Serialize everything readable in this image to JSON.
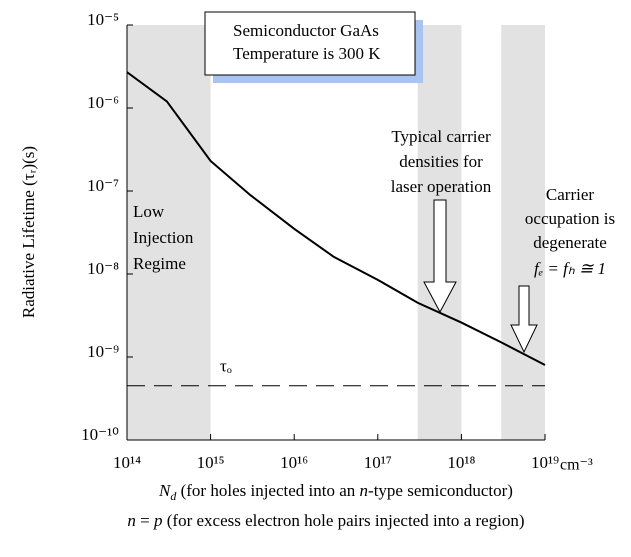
{
  "chart_data": {
    "type": "line",
    "title_lines": [
      "Semiconductor GaAs",
      "Temperature is 300 K"
    ],
    "y_label": "Radiative Lifetime  (τᵣ)(s)",
    "x_label_1": [
      "N",
      "d",
      " (for holes injected into an ",
      "n",
      "-type semiconductor)"
    ],
    "x_label_2": [
      "n",
      " = ",
      "p",
      " (for excess electron hole pairs injected into a region)"
    ],
    "x_unit": "cm⁻³",
    "log_x": true,
    "log_y": true,
    "xlim": [
      100000000000000.0,
      1e+19
    ],
    "ylim": [
      1e-10,
      1e-05
    ],
    "xticks": [
      {
        "value": 100000000000000.0,
        "label": "10¹⁴"
      },
      {
        "value": 1000000000000000.0,
        "label": "10¹⁵"
      },
      {
        "value": 1e+16,
        "label": "10¹⁶"
      },
      {
        "value": 1e+17,
        "label": "10¹⁷"
      },
      {
        "value": 1e+18,
        "label": "10¹⁸"
      },
      {
        "value": 1e+19,
        "label": "10¹⁹"
      }
    ],
    "yticks": [
      {
        "value": 1e-10,
        "label": "10⁻¹⁰"
      },
      {
        "value": 1e-09,
        "label": "10⁻⁹"
      },
      {
        "value": 1e-08,
        "label": "10⁻⁸"
      },
      {
        "value": 1e-07,
        "label": "10⁻⁷"
      },
      {
        "value": 1e-06,
        "label": "10⁻⁶"
      },
      {
        "value": 1e-05,
        "label": "10⁻⁵"
      }
    ],
    "x": [
      100000000000000.0,
      300000000000000.0,
      1000000000000000.0,
      3000000000000000.0,
      1e+16,
      3e+16,
      1e+17,
      3e+17,
      1e+18,
      3e+18,
      1e+19
    ],
    "series": [
      {
        "color": "#000000",
        "values": [
          2.7e-06,
          1.2e-06,
          2.3e-07,
          8.9e-08,
          3.5e-08,
          1.6e-08,
          8.5e-09,
          4.5e-09,
          2.6e-09,
          1.5e-09,
          8e-10
        ]
      }
    ],
    "tau_o": {
      "label": "τₒ",
      "value": 4.5e-10
    },
    "shaded_regions": [
      [
        100000000000000.0,
        1000000000000000.0
      ],
      [
        3e+17,
        1e+18
      ],
      [
        3e+18,
        1e+19
      ]
    ],
    "shade_color": "#e2e2e2",
    "annotations": {
      "low": [
        "Low",
        "Injection",
        "Regime"
      ],
      "laser": [
        "Typical carrier",
        "densities for",
        "laser operation"
      ],
      "degenerate": [
        "Carrier",
        "occupation is",
        "degenerate",
        "fₑ = fₕ ≅ 1"
      ]
    }
  }
}
